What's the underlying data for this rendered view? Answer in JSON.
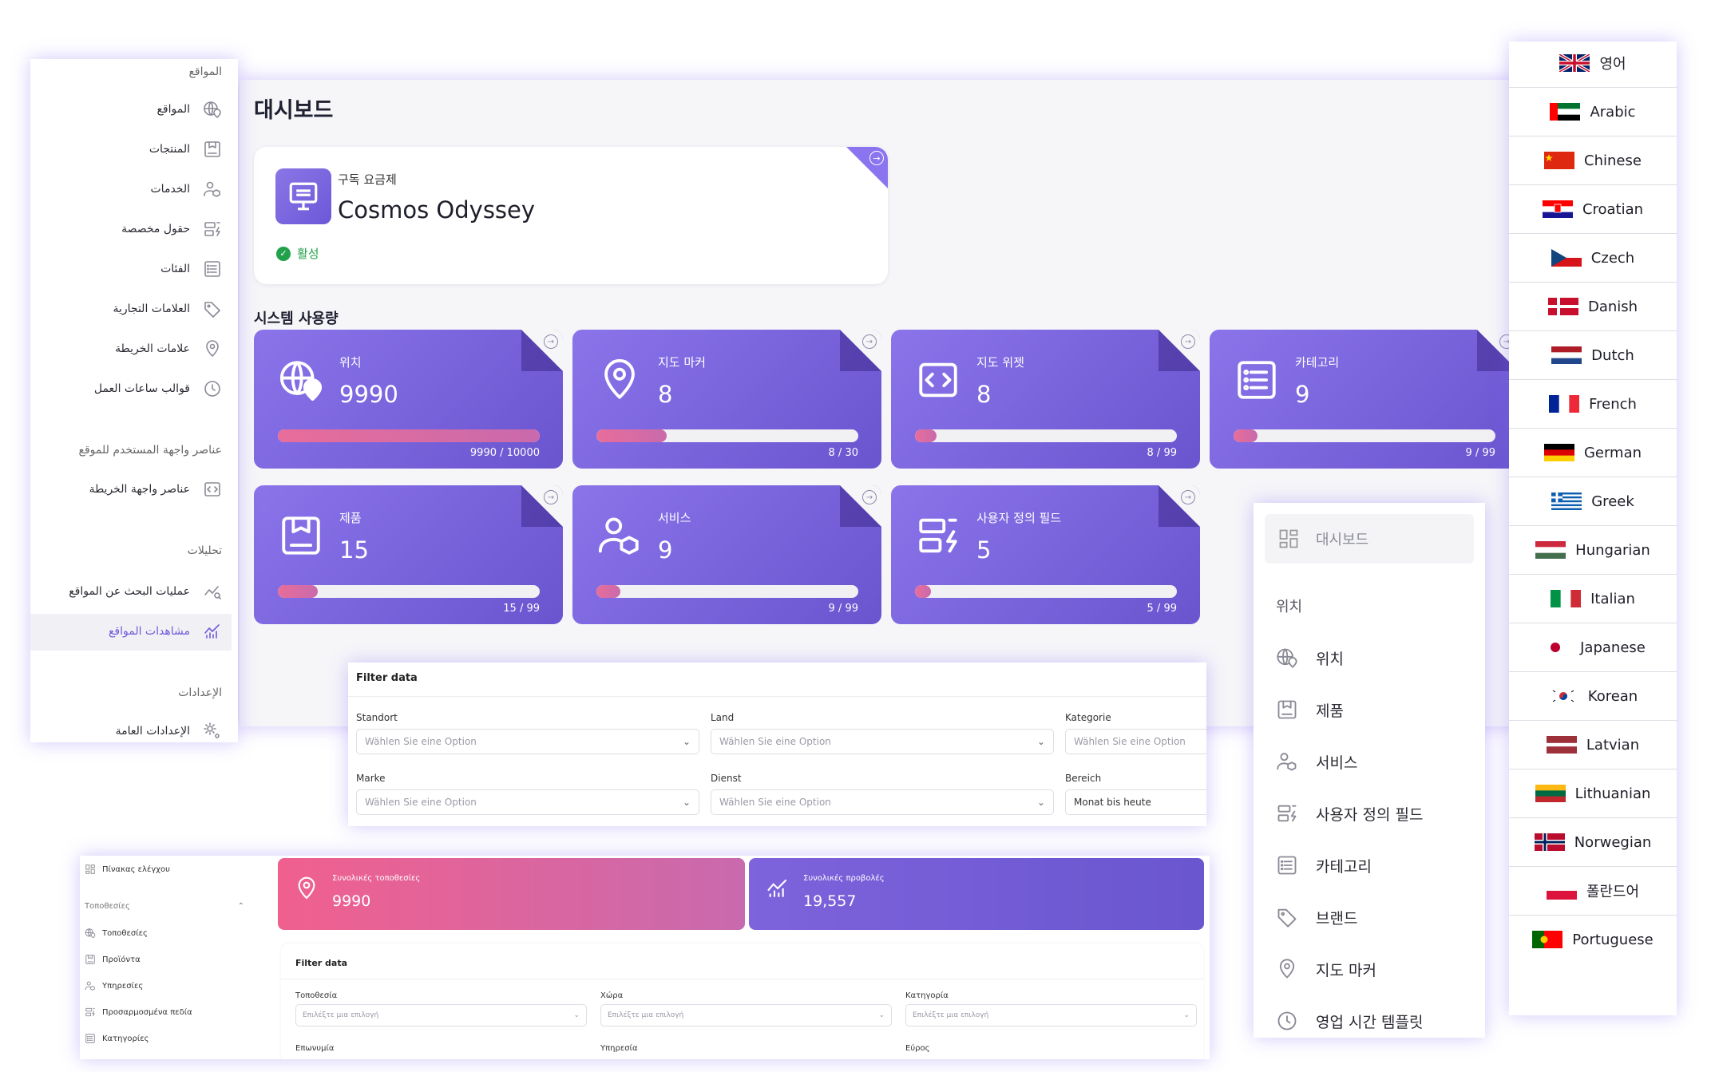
{
  "dashboard": {
    "title": "대시보드",
    "subscription": {
      "label": "구독 요금제",
      "plan_name": "Cosmos Odyssey",
      "status": "활성",
      "status_color": "#22a14b"
    },
    "system_usage_title": "시스템 사용량",
    "usage_cards": [
      {
        "label": "위치",
        "value": "9990",
        "count": "9990 / 10000",
        "progress": 0.999,
        "icon": "globe-pin-icon"
      },
      {
        "label": "지도 마커",
        "value": "8",
        "count": "8 / 30",
        "progress": 0.267,
        "icon": "map-pin-icon"
      },
      {
        "label": "지도 위젯",
        "value": "8",
        "count": "8 / 99",
        "progress": 0.081,
        "icon": "code-icon"
      },
      {
        "label": "카테고리",
        "value": "9",
        "count": "9 / 99",
        "progress": 0.091,
        "icon": "list-icon"
      },
      {
        "label": "제품",
        "value": "15",
        "count": "15 / 99",
        "progress": 0.152,
        "icon": "product-icon"
      },
      {
        "label": "서비스",
        "value": "9",
        "count": "9 / 99",
        "progress": 0.091,
        "icon": "services-icon"
      },
      {
        "label": "사용자 정의 필드",
        "value": "5",
        "count": "5 / 99",
        "progress": 0.051,
        "icon": "custom-fields-icon"
      }
    ],
    "accent_color": "#7b66e0"
  },
  "filter_de": {
    "title": "Filter data",
    "fields": [
      {
        "label": "Standort",
        "placeholder": "Wählen Sie eine Option"
      },
      {
        "label": "Land",
        "placeholder": "Wählen Sie eine Option"
      },
      {
        "label": "Kategorie",
        "placeholder": "Wählen Sie eine Option"
      },
      {
        "label": "Marke",
        "placeholder": "Wählen Sie eine Option"
      },
      {
        "label": "Dienst",
        "placeholder": "Wählen Sie eine Option"
      },
      {
        "label": "Bereich",
        "value": "Monat bis heute"
      }
    ]
  },
  "greek": {
    "sidebar": {
      "dashboard": "Πίνακας ελέγχου",
      "section": "Τοποθεσίες",
      "items": [
        "Τοποθεσίες",
        "Προϊόντα",
        "Υπηρεσίες",
        "Προσαρμοσμένα πεδία",
        "Κατηγορίες"
      ]
    },
    "cards": [
      {
        "label": "Συνολικές τοποθεσίες",
        "value": "9990",
        "icon": "map-pin-icon"
      },
      {
        "label": "Συνολικές προβολές",
        "value": "19,557",
        "icon": "analytics-icon"
      }
    ],
    "filter": {
      "title": "Filter data",
      "fields": [
        {
          "label": "Τοποθεσία",
          "placeholder": "Επιλέξτε μια επιλογή"
        },
        {
          "label": "Χώρα",
          "placeholder": "Επιλέξτε μια επιλογή"
        },
        {
          "label": "Κατηγορία",
          "placeholder": "Επιλέξτε μια επιλογή"
        }
      ],
      "labels_row2": [
        "Επωνυμία",
        "Υπηρεσία",
        "Εύρος"
      ]
    }
  },
  "arabic_sidebar": {
    "header": "المواقع",
    "items": [
      {
        "label": "المواقع",
        "icon": "globe-pin-icon"
      },
      {
        "label": "المنتجات",
        "icon": "product-icon"
      },
      {
        "label": "الخدمات",
        "icon": "services-icon"
      },
      {
        "label": "حقول مخصصة",
        "icon": "custom-fields-icon"
      },
      {
        "label": "الفئات",
        "icon": "list-icon"
      },
      {
        "label": "العلامات التجارية",
        "icon": "tag-icon"
      },
      {
        "label": "علامات الخريطة",
        "icon": "map-pin-icon"
      },
      {
        "label": "قوالب ساعات العمل",
        "icon": "clock-icon"
      }
    ],
    "section_widgets": "عناصر واجهة المستخدم للموقع",
    "widget_item": {
      "label": "عناصر واجهة الخريطة",
      "icon": "code-icon"
    },
    "section_analytics": "تحليلات",
    "analytics_items": [
      {
        "label": "عمليات البحث عن المواقع",
        "icon": "search-analytics-icon"
      },
      {
        "label": "مشاهدات المواقع",
        "icon": "analytics-icon",
        "active": true
      }
    ],
    "section_settings": "الإعدادات",
    "settings_item": {
      "label": "الإعدادات العامة",
      "icon": "gear-icon"
    },
    "active_color": "#6f5bd8"
  },
  "korean_sidebar": {
    "dashboard": "대시보드",
    "section": "위치",
    "items": [
      {
        "label": "위치",
        "icon": "globe-pin-icon"
      },
      {
        "label": "제품",
        "icon": "product-icon"
      },
      {
        "label": "서비스",
        "icon": "services-icon"
      },
      {
        "label": "사용자 정의 필드",
        "icon": "custom-fields-icon"
      },
      {
        "label": "카테고리",
        "icon": "list-icon"
      },
      {
        "label": "브랜드",
        "icon": "tag-icon"
      },
      {
        "label": "지도 마커",
        "icon": "map-pin-icon"
      },
      {
        "label": "영업 시간 템플릿",
        "icon": "clock-icon"
      }
    ]
  },
  "languages": [
    {
      "label": "영어",
      "flag": "uk"
    },
    {
      "label": "Arabic",
      "flag": "uae"
    },
    {
      "label": "Chinese",
      "flag": "china"
    },
    {
      "label": "Croatian",
      "flag": "croatia"
    },
    {
      "label": "Czech",
      "flag": "czech"
    },
    {
      "label": "Danish",
      "flag": "denmark"
    },
    {
      "label": "Dutch",
      "flag": "netherlands"
    },
    {
      "label": "French",
      "flag": "france"
    },
    {
      "label": "German",
      "flag": "germany"
    },
    {
      "label": "Greek",
      "flag": "greece"
    },
    {
      "label": "Hungarian",
      "flag": "hungary"
    },
    {
      "label": "Italian",
      "flag": "italy"
    },
    {
      "label": "Japanese",
      "flag": "japan"
    },
    {
      "label": "Korean",
      "flag": "korea"
    },
    {
      "label": "Latvian",
      "flag": "latvia"
    },
    {
      "label": "Lithuanian",
      "flag": "lithuania"
    },
    {
      "label": "Norwegian",
      "flag": "norway"
    },
    {
      "label": "폴란드어",
      "flag": "poland"
    },
    {
      "label": "Portuguese",
      "flag": "portugal"
    }
  ]
}
